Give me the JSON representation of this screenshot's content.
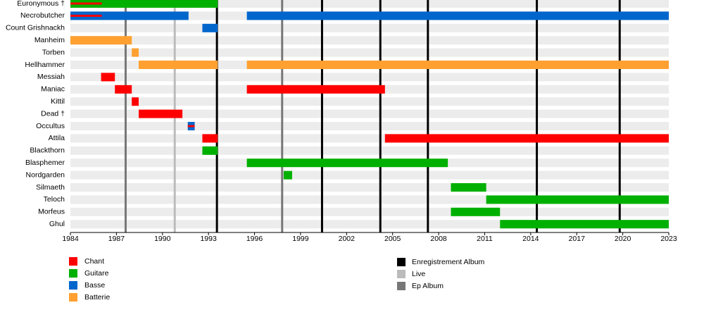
{
  "chart_data": {
    "type": "timeline",
    "xlim": [
      1984,
      2023
    ],
    "xticks": [
      1984,
      1987,
      1990,
      1993,
      1996,
      1999,
      2002,
      2005,
      2008,
      2011,
      2014,
      2017,
      2020,
      2023
    ],
    "roles": [
      {
        "name": "Chant",
        "color": "#ff0000"
      },
      {
        "name": "Guitare",
        "color": "#00b000"
      },
      {
        "name": "Basse",
        "color": "#0066cc"
      },
      {
        "name": "Batterie",
        "color": "#ffa030"
      }
    ],
    "events": [
      {
        "name": "Enregistrement Album",
        "color": "#000000",
        "x": [
          1993.55,
          2000.4,
          2004.2,
          2007.3,
          2014.4,
          2019.8
        ]
      },
      {
        "name": "Live",
        "color": "#bbbbbb",
        "x": [
          1990.8
        ]
      },
      {
        "name": "Ep Album",
        "color": "#777777",
        "x": [
          1987.6,
          1997.8
        ]
      }
    ],
    "members": [
      {
        "name": "Euronymous †",
        "spans": [
          {
            "role": "Guitare",
            "start": 1984,
            "end": 1993.6
          },
          {
            "role": "Chant",
            "start": 1984,
            "end": 1986.05,
            "thin": true
          }
        ]
      },
      {
        "name": "Necrobutcher",
        "spans": [
          {
            "role": "Basse",
            "start": 1984,
            "end": 1991.7
          },
          {
            "role": "Chant",
            "start": 1984,
            "end": 1986.05,
            "thin": true
          },
          {
            "role": "Basse",
            "start": 1995.5,
            "end": 2023
          }
        ]
      },
      {
        "name": "Count Grishnackh",
        "spans": [
          {
            "role": "Basse",
            "start": 1992.6,
            "end": 1993.6
          }
        ]
      },
      {
        "name": "Manheim",
        "spans": [
          {
            "role": "Batterie",
            "start": 1984,
            "end": 1988.0
          }
        ]
      },
      {
        "name": "Torben",
        "spans": [
          {
            "role": "Batterie",
            "start": 1988.0,
            "end": 1988.45
          }
        ]
      },
      {
        "name": "Hellhammer",
        "spans": [
          {
            "role": "Batterie",
            "start": 1988.45,
            "end": 1993.6
          },
          {
            "role": "Batterie",
            "start": 1995.5,
            "end": 2023
          }
        ]
      },
      {
        "name": "Messiah",
        "spans": [
          {
            "role": "Chant",
            "start": 1986.0,
            "end": 1986.9
          }
        ]
      },
      {
        "name": "Maniac",
        "spans": [
          {
            "role": "Chant",
            "start": 1986.9,
            "end": 1988.0
          },
          {
            "role": "Chant",
            "start": 1995.5,
            "end": 2004.5
          }
        ]
      },
      {
        "name": "Kittil",
        "spans": [
          {
            "role": "Chant",
            "start": 1988.0,
            "end": 1988.45
          }
        ]
      },
      {
        "name": "Dead †",
        "spans": [
          {
            "role": "Chant",
            "start": 1988.45,
            "end": 1991.3
          }
        ]
      },
      {
        "name": "Occultus",
        "spans": [
          {
            "role": "Basse",
            "start": 1991.65,
            "end": 1992.1
          },
          {
            "role": "Chant",
            "start": 1991.65,
            "end": 1992.1,
            "thin": true
          }
        ]
      },
      {
        "name": "Attila",
        "spans": [
          {
            "role": "Chant",
            "start": 1992.6,
            "end": 1993.6
          },
          {
            "role": "Chant",
            "start": 2004.5,
            "end": 2023
          }
        ]
      },
      {
        "name": "Blackthorn",
        "spans": [
          {
            "role": "Guitare",
            "start": 1992.6,
            "end": 1993.6
          }
        ]
      },
      {
        "name": "Blasphemer",
        "spans": [
          {
            "role": "Guitare",
            "start": 1995.5,
            "end": 2008.6
          }
        ]
      },
      {
        "name": "Nordgarden",
        "spans": [
          {
            "role": "Guitare",
            "start": 1997.9,
            "end": 1998.45
          }
        ]
      },
      {
        "name": "Silmaeth",
        "spans": [
          {
            "role": "Guitare",
            "start": 2008.8,
            "end": 2011.1
          }
        ]
      },
      {
        "name": "Teloch",
        "spans": [
          {
            "role": "Guitare",
            "start": 2011.1,
            "end": 2023
          }
        ]
      },
      {
        "name": "Morfeus",
        "spans": [
          {
            "role": "Guitare",
            "start": 2008.8,
            "end": 2012.0
          }
        ]
      },
      {
        "name": "Ghul",
        "spans": [
          {
            "role": "Guitare",
            "start": 2012.0,
            "end": 2023
          }
        ]
      }
    ]
  }
}
